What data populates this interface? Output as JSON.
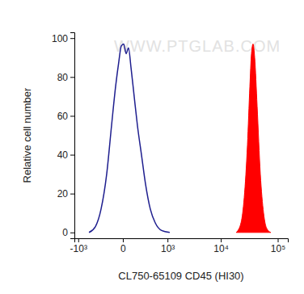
{
  "chart_data": {
    "type": "histogram_overlay",
    "xlabel": "CL750-65109 CD45 (HI30)",
    "ylabel": "Relative cell number",
    "annotations": [
      "WWW.PTGLAB.COM"
    ],
    "log": "x",
    "grid": false,
    "xlim": [
      -1200,
      150000
    ],
    "xticks": [
      {
        "value": -1000,
        "label": "-10³"
      },
      0,
      {
        "value": 1000,
        "label": "10³"
      },
      {
        "value": 10000,
        "label": "10⁴"
      },
      {
        "value": 100000,
        "label": "10⁵"
      }
    ],
    "ylim": [
      -3,
      103
    ],
    "yticks": [
      0,
      20,
      40,
      60,
      80,
      100
    ],
    "series": [
      {
        "type": "line",
        "color": "#1f1f8f",
        "x": [
          -580,
          -402,
          -280,
          -183,
          -115,
          -68,
          -35,
          -13,
          7,
          28,
          51,
          77,
          115,
          159,
          222,
          296,
          402,
          532,
          748,
          1112
        ],
        "values": [
          0,
          3,
          12,
          30,
          55,
          75,
          88,
          96,
          97,
          92,
          95,
          85,
          70,
          55,
          40,
          25,
          12,
          5,
          1,
          0
        ]
      },
      {
        "type": "area",
        "color": "#ff0000",
        "x": [
          18740,
          22760,
          25900,
          29500,
          32500,
          34700,
          37000,
          39500,
          43600,
          49600,
          56500,
          64300,
          75500
        ],
        "values": [
          0,
          5,
          18,
          45,
          75,
          92,
          97,
          90,
          65,
          30,
          10,
          2,
          0
        ]
      }
    ]
  }
}
